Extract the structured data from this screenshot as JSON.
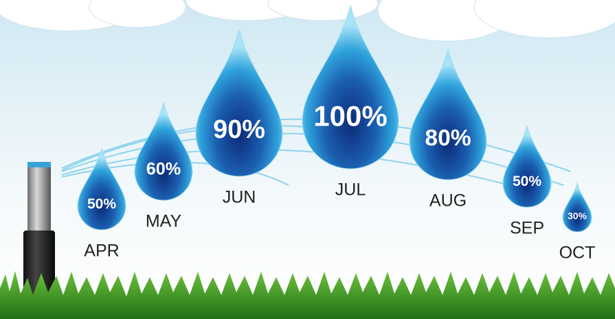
{
  "chart_data": {
    "type": "drop",
    "categories": [
      "APR",
      "MAY",
      "JUN",
      "JUL",
      "AUG",
      "SEP",
      "OCT"
    ],
    "values": [
      50,
      60,
      90,
      100,
      80,
      50,
      30
    ],
    "value_labels": [
      "50%",
      "60%",
      "90%",
      "100%",
      "80%",
      "50%",
      "30%"
    ]
  }
}
